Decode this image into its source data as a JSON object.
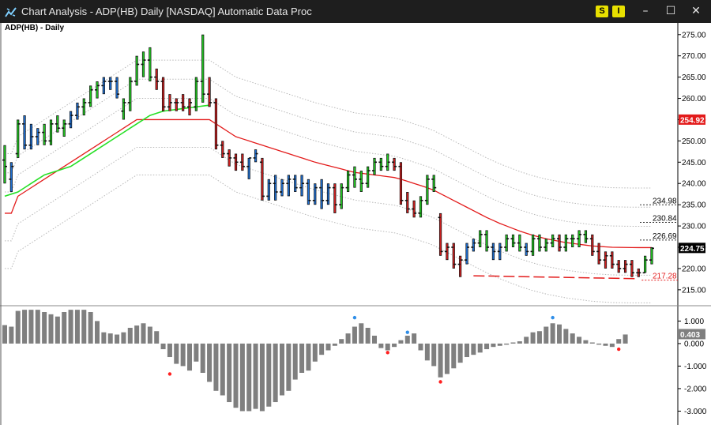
{
  "window": {
    "title": "Chart Analysis - ADP(HB) Daily [NASDAQ] Automatic Data Proc",
    "buttons": [
      "S",
      "I"
    ],
    "controls": {
      "minimize": "minimize-icon",
      "maximize": "maximize-icon",
      "close": "close-icon"
    },
    "app_icon": "chart-analysis-icon"
  },
  "chart_data": [
    {
      "type": "ohlc",
      "title": "ADP(HB) - Daily",
      "ylim": [
        212,
        277
      ],
      "yticks": [
        "275.00",
        "270.00",
        "265.00",
        "260.00",
        "255.00",
        "250.00",
        "245.00",
        "240.00",
        "235.00",
        "230.00",
        "225.00",
        "220.00",
        "215.00"
      ],
      "bar_colors": {
        "up": "#22c722",
        "down": "#cc1f1f",
        "neutral": "#1f6fd1"
      },
      "bars": [
        {
          "o": 245.5,
          "h": 249,
          "l": 240,
          "c": 244,
          "col": "g"
        },
        {
          "o": 241,
          "h": 245,
          "l": 238,
          "c": 244,
          "col": "b"
        },
        {
          "o": 247,
          "h": 255,
          "l": 246,
          "c": 254,
          "col": "g"
        },
        {
          "o": 254,
          "h": 256,
          "l": 248,
          "c": 249,
          "col": "b"
        },
        {
          "o": 249,
          "h": 254,
          "l": 248,
          "c": 251,
          "col": "b"
        },
        {
          "o": 251,
          "h": 253,
          "l": 249,
          "c": 252,
          "col": "b"
        },
        {
          "o": 252,
          "h": 254,
          "l": 249,
          "c": 250,
          "col": "g"
        },
        {
          "o": 250,
          "h": 255,
          "l": 249,
          "c": 254,
          "col": "g"
        },
        {
          "o": 254,
          "h": 256,
          "l": 252,
          "c": 253,
          "col": "g"
        },
        {
          "o": 253,
          "h": 255,
          "l": 251,
          "c": 254,
          "col": "g"
        },
        {
          "o": 254,
          "h": 257,
          "l": 253,
          "c": 256,
          "col": "b"
        },
        {
          "o": 256,
          "h": 259,
          "l": 255,
          "c": 258,
          "col": "b"
        },
        {
          "o": 258,
          "h": 260,
          "l": 256,
          "c": 259,
          "col": "g"
        },
        {
          "o": 259,
          "h": 263,
          "l": 258,
          "c": 262,
          "col": "g"
        },
        {
          "o": 262,
          "h": 264,
          "l": 260,
          "c": 263,
          "col": "g"
        },
        {
          "o": 263,
          "h": 265,
          "l": 261,
          "c": 264,
          "col": "b"
        },
        {
          "o": 264,
          "h": 265,
          "l": 262,
          "c": 264,
          "col": "b"
        },
        {
          "o": 264,
          "h": 265,
          "l": 260,
          "c": 261,
          "col": "b"
        },
        {
          "o": 257,
          "h": 260,
          "l": 255,
          "c": 259,
          "col": "g"
        },
        {
          "o": 259,
          "h": 265,
          "l": 257,
          "c": 264,
          "col": "g"
        },
        {
          "o": 264,
          "h": 270,
          "l": 263,
          "c": 268,
          "col": "g"
        },
        {
          "o": 268,
          "h": 271,
          "l": 265,
          "c": 269,
          "col": "g"
        },
        {
          "o": 269,
          "h": 272,
          "l": 264,
          "c": 265,
          "col": "g"
        },
        {
          "o": 265,
          "h": 267,
          "l": 262,
          "c": 264,
          "col": "r"
        },
        {
          "o": 264,
          "h": 265,
          "l": 257,
          "c": 258,
          "col": "r"
        },
        {
          "o": 258,
          "h": 261,
          "l": 257,
          "c": 259,
          "col": "r"
        },
        {
          "o": 259,
          "h": 260,
          "l": 257,
          "c": 259,
          "col": "r"
        },
        {
          "o": 259,
          "h": 261,
          "l": 257,
          "c": 258,
          "col": "r"
        },
        {
          "o": 258,
          "h": 260,
          "l": 256,
          "c": 259,
          "col": "r"
        },
        {
          "o": 258,
          "h": 265,
          "l": 257,
          "c": 264,
          "col": "g"
        },
        {
          "o": 264,
          "h": 275,
          "l": 259,
          "c": 261,
          "col": "g"
        },
        {
          "o": 261,
          "h": 265,
          "l": 258,
          "c": 259,
          "col": "r"
        },
        {
          "o": 259,
          "h": 260,
          "l": 248,
          "c": 249,
          "col": "r"
        },
        {
          "o": 249,
          "h": 250,
          "l": 246,
          "c": 247,
          "col": "r"
        },
        {
          "o": 247,
          "h": 248,
          "l": 244,
          "c": 246,
          "col": "r"
        },
        {
          "o": 246,
          "h": 247,
          "l": 243,
          "c": 245,
          "col": "r"
        },
        {
          "o": 245,
          "h": 247,
          "l": 243,
          "c": 244,
          "col": "r"
        },
        {
          "o": 244,
          "h": 246,
          "l": 241,
          "c": 246,
          "col": "b"
        },
        {
          "o": 246,
          "h": 248,
          "l": 245,
          "c": 247,
          "col": "b"
        },
        {
          "o": 245,
          "h": 246,
          "l": 236,
          "c": 237,
          "col": "r"
        },
        {
          "o": 237,
          "h": 241,
          "l": 236,
          "c": 240,
          "col": "b"
        },
        {
          "o": 240,
          "h": 242,
          "l": 236,
          "c": 238,
          "col": "b"
        },
        {
          "o": 238,
          "h": 241,
          "l": 237,
          "c": 240,
          "col": "b"
        },
        {
          "o": 240,
          "h": 242,
          "l": 237,
          "c": 241,
          "col": "b"
        },
        {
          "o": 241,
          "h": 242,
          "l": 238,
          "c": 239,
          "col": "b"
        },
        {
          "o": 239,
          "h": 242,
          "l": 237,
          "c": 240,
          "col": "b"
        },
        {
          "o": 240,
          "h": 241,
          "l": 235,
          "c": 236,
          "col": "b"
        },
        {
          "o": 236,
          "h": 240,
          "l": 235,
          "c": 239,
          "col": "b"
        },
        {
          "o": 239,
          "h": 241,
          "l": 234,
          "c": 236,
          "col": "b"
        },
        {
          "o": 236,
          "h": 240,
          "l": 235,
          "c": 239,
          "col": "b"
        },
        {
          "o": 239,
          "h": 240,
          "l": 233,
          "c": 235,
          "col": "r"
        },
        {
          "o": 235,
          "h": 240,
          "l": 234,
          "c": 239,
          "col": "g"
        },
        {
          "o": 239,
          "h": 243,
          "l": 238,
          "c": 242,
          "col": "g"
        },
        {
          "o": 242,
          "h": 244,
          "l": 239,
          "c": 241,
          "col": "g"
        },
        {
          "o": 241,
          "h": 243,
          "l": 238,
          "c": 240,
          "col": "g"
        },
        {
          "o": 240,
          "h": 244,
          "l": 239,
          "c": 243,
          "col": "g"
        },
        {
          "o": 243,
          "h": 246,
          "l": 242,
          "c": 245,
          "col": "g"
        },
        {
          "o": 245,
          "h": 246,
          "l": 243,
          "c": 244,
          "col": "g"
        },
        {
          "o": 244,
          "h": 247,
          "l": 243,
          "c": 245,
          "col": "g"
        },
        {
          "o": 245,
          "h": 246,
          "l": 243,
          "c": 244,
          "col": "r"
        },
        {
          "o": 244,
          "h": 245,
          "l": 235,
          "c": 236,
          "col": "r"
        },
        {
          "o": 236,
          "h": 238,
          "l": 233,
          "c": 234,
          "col": "r"
        },
        {
          "o": 234,
          "h": 236,
          "l": 232,
          "c": 233,
          "col": "r"
        },
        {
          "o": 233,
          "h": 237,
          "l": 232,
          "c": 236,
          "col": "g"
        },
        {
          "o": 236,
          "h": 242,
          "l": 235,
          "c": 241,
          "col": "g"
        },
        {
          "o": 241,
          "h": 242,
          "l": 238,
          "c": 239,
          "col": "g"
        },
        {
          "o": 232,
          "h": 233,
          "l": 223,
          "c": 224,
          "col": "r"
        },
        {
          "o": 224,
          "h": 226,
          "l": 222,
          "c": 225,
          "col": "r"
        },
        {
          "o": 225,
          "h": 226,
          "l": 220,
          "c": 221,
          "col": "r"
        },
        {
          "o": 221,
          "h": 223,
          "l": 218,
          "c": 222,
          "col": "r"
        },
        {
          "o": 222,
          "h": 226,
          "l": 221,
          "c": 225,
          "col": "b"
        },
        {
          "o": 225,
          "h": 227,
          "l": 224,
          "c": 226,
          "col": "b"
        },
        {
          "o": 226,
          "h": 229,
          "l": 225,
          "c": 228,
          "col": "g"
        },
        {
          "o": 228,
          "h": 229,
          "l": 224,
          "c": 225,
          "col": "g"
        },
        {
          "o": 225,
          "h": 226,
          "l": 222,
          "c": 224,
          "col": "b"
        },
        {
          "o": 224,
          "h": 226,
          "l": 222,
          "c": 225,
          "col": "b"
        },
        {
          "o": 225,
          "h": 228,
          "l": 224,
          "c": 227,
          "col": "g"
        },
        {
          "o": 227,
          "h": 228,
          "l": 225,
          "c": 226,
          "col": "g"
        },
        {
          "o": 226,
          "h": 228,
          "l": 224,
          "c": 225,
          "col": "g"
        },
        {
          "o": 225,
          "h": 226,
          "l": 223,
          "c": 224,
          "col": "b"
        },
        {
          "o": 224,
          "h": 228,
          "l": 223,
          "c": 227,
          "col": "g"
        },
        {
          "o": 227,
          "h": 228,
          "l": 224,
          "c": 225,
          "col": "g"
        },
        {
          "o": 225,
          "h": 227,
          "l": 224,
          "c": 226,
          "col": "g"
        },
        {
          "o": 226,
          "h": 228,
          "l": 225,
          "c": 227,
          "col": "g"
        },
        {
          "o": 227,
          "h": 228,
          "l": 224,
          "c": 225,
          "col": "r"
        },
        {
          "o": 225,
          "h": 228,
          "l": 224,
          "c": 227,
          "col": "g"
        },
        {
          "o": 227,
          "h": 228,
          "l": 225,
          "c": 227,
          "col": "g"
        },
        {
          "o": 227,
          "h": 229,
          "l": 225,
          "c": 228,
          "col": "g"
        },
        {
          "o": 228,
          "h": 229,
          "l": 226,
          "c": 227,
          "col": "g"
        },
        {
          "o": 227,
          "h": 228,
          "l": 223,
          "c": 224,
          "col": "r"
        },
        {
          "o": 224,
          "h": 226,
          "l": 221,
          "c": 222,
          "col": "r"
        },
        {
          "o": 222,
          "h": 224,
          "l": 220,
          "c": 223,
          "col": "r"
        },
        {
          "o": 223,
          "h": 224,
          "l": 220,
          "c": 221,
          "col": "r"
        },
        {
          "o": 221,
          "h": 222,
          "l": 219,
          "c": 220,
          "col": "r"
        },
        {
          "o": 220,
          "h": 222,
          "l": 219,
          "c": 221,
          "col": "r"
        },
        {
          "o": 221,
          "h": 222,
          "l": 218,
          "c": 219,
          "col": "r"
        },
        {
          "o": 219,
          "h": 220,
          "l": 218,
          "c": 219,
          "col": "r"
        },
        {
          "o": 219,
          "h": 223,
          "l": 219,
          "c": 222,
          "col": "g"
        },
        {
          "o": 222,
          "h": 225,
          "l": 221,
          "c": 224.75,
          "col": "g"
        }
      ],
      "moving_average_red": [
        233,
        233,
        237,
        238,
        239,
        240,
        241,
        242,
        243,
        244,
        245,
        246,
        247,
        248,
        249,
        250,
        251,
        252,
        253,
        254,
        255,
        255,
        255,
        255,
        255,
        255,
        255,
        255,
        255,
        255,
        255,
        255,
        254,
        253,
        252,
        251,
        250.5,
        250,
        249.5,
        249,
        248.5,
        248,
        247.5,
        247,
        246.5,
        246,
        245.5,
        245,
        244.6,
        244.2,
        243.8,
        243.4,
        243,
        242.6,
        242.4,
        242.2,
        242,
        241.8,
        241.6,
        241.4,
        241,
        240.5,
        240,
        239.5,
        239,
        238.4,
        237.6,
        236.8,
        236,
        235.2,
        234.4,
        233.6,
        232.8,
        232,
        231.3,
        230.6,
        230,
        229.4,
        228.8,
        228.3,
        227.8,
        227.4,
        227,
        226.7,
        226.4,
        226.1,
        225.9,
        225.7,
        225.5,
        225.3,
        225.2,
        225.1,
        225,
        224.98,
        224.95,
        224.93,
        224.92,
        224.92,
        224.92
      ],
      "moving_average_green": [
        237,
        237.5,
        238,
        239,
        240,
        241,
        242,
        242.5,
        243,
        243.5,
        244,
        245,
        246,
        247,
        248,
        249,
        250,
        251,
        252,
        253,
        254,
        255,
        256,
        256.5,
        257,
        257.2,
        257.4,
        257.6,
        257.8,
        258,
        258.2,
        258.4
      ],
      "envelope_upper_1": 234.98,
      "envelope_upper_2": 230.84,
      "envelope_upper_3": 226.69,
      "support_line": {
        "from": 218.3,
        "to": 217.6,
        "projected": 217.28
      },
      "price_labels": {
        "ma_value": "254.92",
        "env_1": "234.98",
        "env_2": "230.84",
        "env_3": "226.69",
        "last_close": "224.75",
        "support": "217.28"
      }
    },
    {
      "type": "bar",
      "title": "",
      "ylim": [
        -3.3,
        1.4
      ],
      "yticks": [
        "1.000",
        "0.000",
        "-1.000",
        "-2.000",
        "-3.000"
      ],
      "last_value": "0.403",
      "values": [
        0.82,
        0.75,
        1.45,
        1.5,
        1.5,
        1.5,
        1.4,
        1.3,
        1.2,
        1.4,
        1.5,
        1.5,
        1.5,
        1.4,
        1.0,
        0.5,
        0.45,
        0.4,
        0.5,
        0.7,
        0.8,
        0.9,
        0.75,
        0.55,
        -0.25,
        -0.6,
        -0.9,
        -1.0,
        -1.2,
        -0.8,
        -1.3,
        -1.7,
        -2.1,
        -2.3,
        -2.6,
        -2.85,
        -3.0,
        -3.0,
        -2.9,
        -3.0,
        -2.8,
        -2.6,
        -2.3,
        -2.1,
        -1.6,
        -1.3,
        -1.2,
        -0.8,
        -0.5,
        -0.3,
        -0.1,
        0.2,
        0.45,
        0.75,
        0.9,
        0.7,
        0.35,
        -0.2,
        -0.3,
        -0.15,
        0.15,
        0.35,
        0.45,
        -0.3,
        -0.75,
        -1.0,
        -1.5,
        -1.35,
        -1.1,
        -0.85,
        -0.6,
        -0.5,
        -0.4,
        -0.25,
        -0.15,
        -0.1,
        -0.05,
        0.05,
        0.1,
        0.3,
        0.5,
        0.55,
        0.75,
        0.9,
        0.85,
        0.65,
        0.45,
        0.3,
        0.15,
        0.05,
        -0.05,
        -0.1,
        -0.15,
        0.2,
        0.403
      ],
      "dots": [
        {
          "i": 25,
          "v": -1.35,
          "color": "#ff2020"
        },
        {
          "i": 53,
          "v": 1.15,
          "color": "#2f8ee8"
        },
        {
          "i": 58,
          "v": -0.4,
          "color": "#ff2020"
        },
        {
          "i": 61,
          "v": 0.5,
          "color": "#2f8ee8"
        },
        {
          "i": 66,
          "v": -1.7,
          "color": "#ff2020"
        },
        {
          "i": 83,
          "v": 1.15,
          "color": "#2f8ee8"
        },
        {
          "i": 93,
          "v": -0.25,
          "color": "#ff2020"
        }
      ]
    }
  ]
}
